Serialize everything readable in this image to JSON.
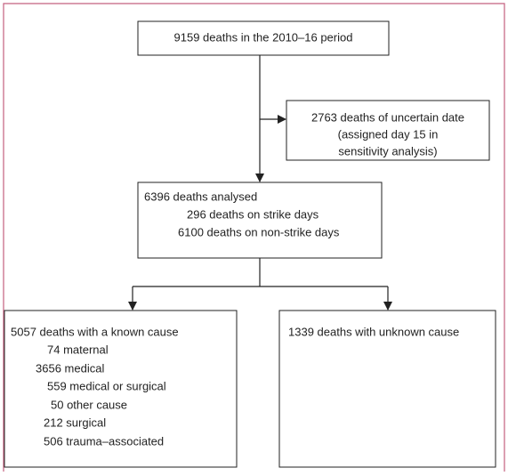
{
  "nodes": [
    {
      "lines": [
        "9159 deaths in the 2010–16 period"
      ]
    },
    {
      "lines": [
        "2763 deaths of uncertain date",
        "(assigned day 15 in",
        "sensitivity analysis)"
      ]
    },
    {
      "lines": [
        "6396 deaths analysed",
        "296 deaths on strike days",
        "6100 deaths on non-strike days"
      ]
    },
    {
      "lines": [
        "5057 deaths with a known cause",
        "74 maternal",
        "3656 medical",
        "559 medical or surgical",
        "50 other cause",
        "212 surgical",
        "506 trauma–associated"
      ]
    },
    {
      "lines": [
        "1339 deaths with unknown cause"
      ]
    }
  ]
}
